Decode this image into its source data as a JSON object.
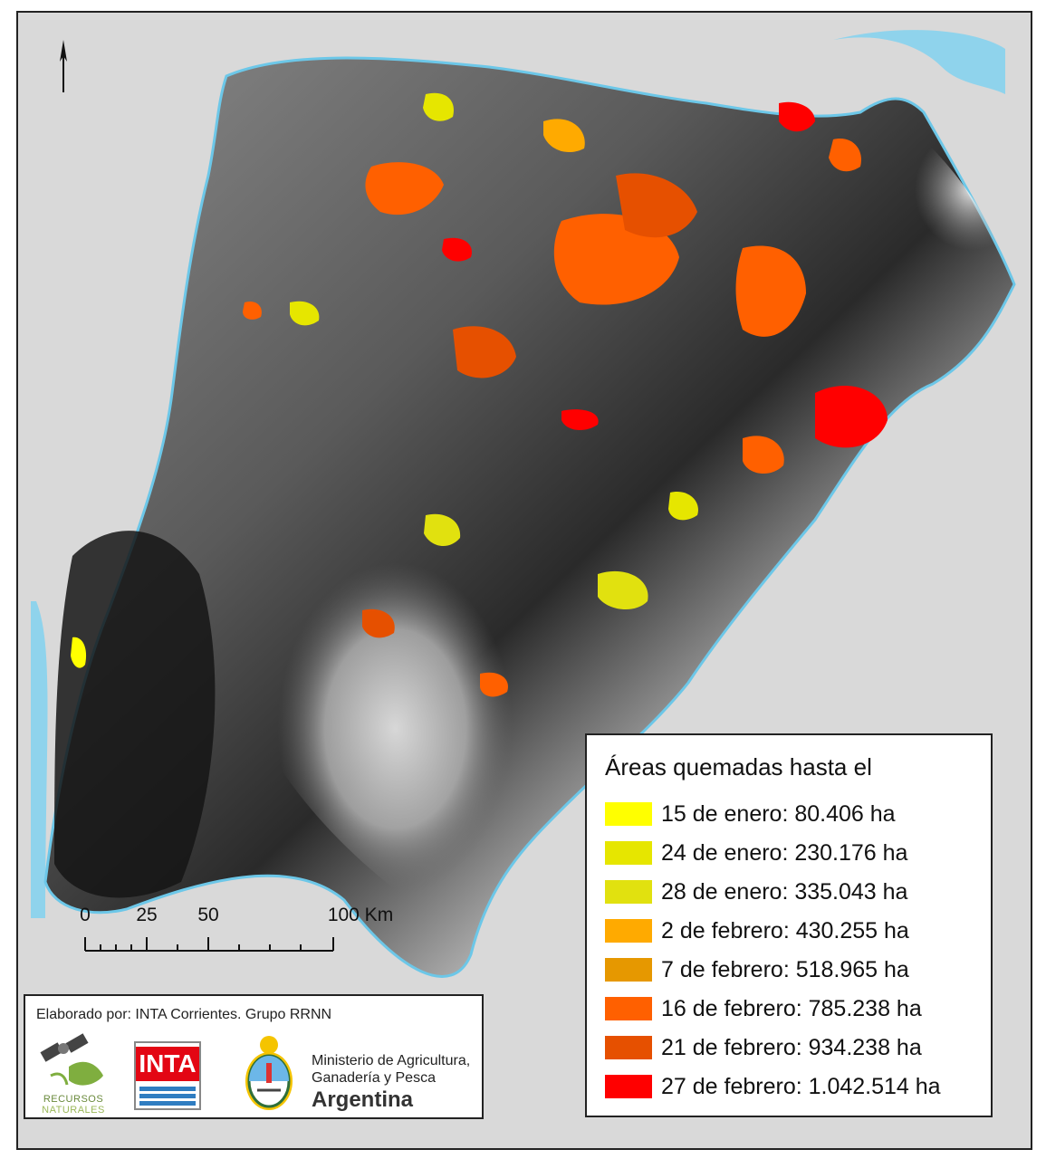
{
  "map": {
    "north_label": "N",
    "colors": {
      "background_land": "#d9d9d9",
      "water": "#8fd3ec",
      "terrain_dark": "#1a1a1a",
      "terrain_light": "#f4f4f4"
    }
  },
  "scale": {
    "ticks": [
      "0",
      "25",
      "50",
      "100 Km"
    ]
  },
  "credits": {
    "text": "Elaborado por: INTA Corrientes. Grupo RRNN",
    "rrnn_line1": "RECURSOS",
    "rrnn_line2": "NATURALES",
    "inta": "INTA",
    "ministerio_line1": "Ministerio de Agricultura,",
    "ministerio_line2": "Ganadería y Pesca",
    "ministerio_line3": "Argentina"
  },
  "legend": {
    "title": "Áreas quemadas hasta el",
    "items": [
      {
        "label": "15 de enero: 80.406 ha",
        "color": "#ffff00"
      },
      {
        "label": "24 de enero: 230.176 ha",
        "color": "#e6e600"
      },
      {
        "label": "28 de enero: 335.043 ha",
        "color": "#e1e10f"
      },
      {
        "label": "2 de febrero: 430.255 ha",
        "color": "#ffaa00"
      },
      {
        "label": "7 de febrero: 518.965 ha",
        "color": "#e69800"
      },
      {
        "label": "16 de febrero: 785.238 ha",
        "color": "#ff6000"
      },
      {
        "label": "21 de febrero: 934.238 ha",
        "color": "#e65000"
      },
      {
        "label": "27 de febrero: 1.042.514 ha",
        "color": "#ff0000"
      }
    ]
  }
}
